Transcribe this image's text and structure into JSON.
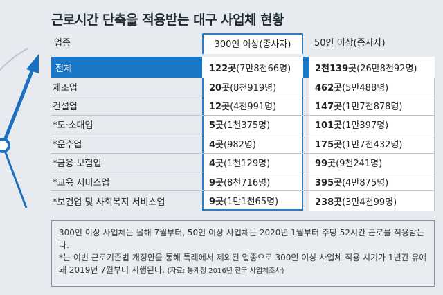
{
  "title": "근로시간 단축을 적용받는 대구 사업체 현황",
  "headers": {
    "industry": "업종",
    "col300": "300인 이상(종사자)",
    "col50": "50인 이상(종사자)"
  },
  "rows": [
    {
      "industry": "전체",
      "c300_count": "122곳",
      "c300_workers": "(7만8천66명)",
      "c50_count": "2천139곳",
      "c50_workers": "(26만8천92명)"
    },
    {
      "industry": "제조업",
      "c300_count": "20곳",
      "c300_workers": "(8천919명)",
      "c50_count": "462곳",
      "c50_workers": "(5만488명)"
    },
    {
      "industry": "건설업",
      "c300_count": "12곳",
      "c300_workers": "(4천991명)",
      "c50_count": "147곳",
      "c50_workers": "(1만7천878명)"
    },
    {
      "industry": "*도·소매업",
      "c300_count": "5곳",
      "c300_workers": "(1천375명)",
      "c50_count": "101곳",
      "c50_workers": "(1만397명)"
    },
    {
      "industry": "*운수업",
      "c300_count": "4곳",
      "c300_workers": "(982명)",
      "c50_count": "175곳",
      "c50_workers": "(1만7천432명)"
    },
    {
      "industry": "*금융·보험업",
      "c300_count": "4곳",
      "c300_workers": "(1천129명)",
      "c50_count": "99곳",
      "c50_workers": "(9천241명)"
    },
    {
      "industry": "*교육 서비스업",
      "c300_count": "9곳",
      "c300_workers": "(8천716명)",
      "c50_count": "395곳",
      "c50_workers": "(4만875명)"
    },
    {
      "industry": "*보건업 및 사회복지 서비스업",
      "c300_count": "9곳",
      "c300_workers": "(1만1천65명)",
      "c50_count": "238곳",
      "c50_workers": "(3만4천99명)"
    }
  ],
  "notes": {
    "line1": "300인 이상 사업체는 올해 7월부터, 50인 이상 사업체는 2020년 1월부터 주당 52시간 근로를 적용받는다.",
    "line2": "*는 이번 근로기준법 개정안을 통해 특례에서 제외된 업종으로 300인 이상 사업체 적용 시기가 1년간 유예돼 2019년 7월부터 시행된다.",
    "source": "(자료: 통계청 2016년 전국 사업체조사)"
  },
  "colors": {
    "accent": "#1a78c8",
    "highlight_border": "#2a7cc3",
    "background": "#e7ebef",
    "clock_hand": "#1a6fc0"
  },
  "icons": [
    "clock-hand-icon"
  ]
}
